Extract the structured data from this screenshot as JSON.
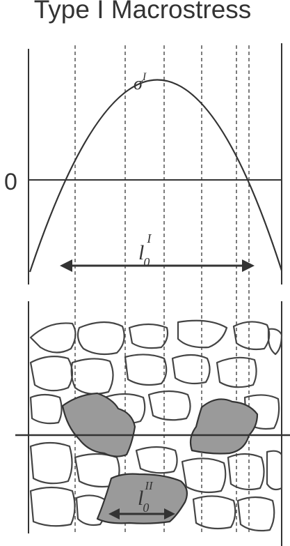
{
  "title": "Type I Macrostress",
  "zero_label": "0",
  "stress_symbol": {
    "base": "σ",
    "sup": "I"
  },
  "macro_length": {
    "base": "l",
    "sub": "0",
    "sup": "I"
  },
  "micro_length": {
    "base": "l",
    "sub": "0",
    "sup": "II"
  },
  "colors": {
    "line": "#333333",
    "grain_fill": "#9a9a9a",
    "background": "#ffffff"
  }
}
